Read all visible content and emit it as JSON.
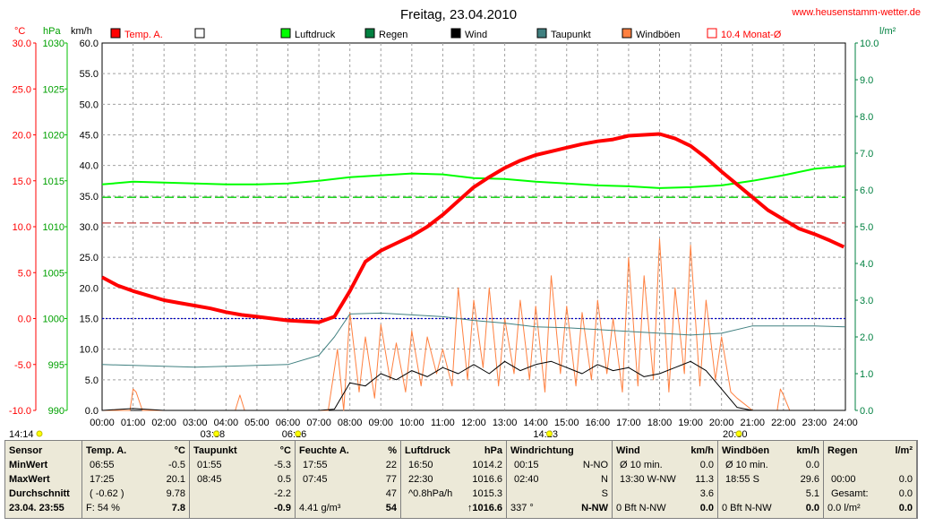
{
  "header": {
    "title": "Freitag, 23.04.2010",
    "website": "www.heusenstamm-wetter.de"
  },
  "axes": {
    "unit_temp": "°C",
    "unit_hpa": "hPa",
    "unit_kmh": "km/h",
    "unit_rain": "l/m²",
    "temp_labels": [
      "30.0",
      "25.0",
      "20.0",
      "15.0",
      "10.0",
      "5.0",
      "0.0",
      "-5.0",
      "-10.0"
    ],
    "hpa_labels": [
      "1030",
      "1025",
      "1020",
      "1015",
      "1010",
      "1005",
      "1000",
      "995",
      "990"
    ],
    "kmh_labels": [
      "60.0",
      "55.0",
      "50.0",
      "45.0",
      "40.0",
      "35.0",
      "30.0",
      "25.0",
      "20.0",
      "15.0",
      "10.0",
      "5.0",
      "0.0"
    ],
    "rain_labels": [
      "10.0",
      "9.0",
      "8.0",
      "7.0",
      "6.0",
      "5.0",
      "4.0",
      "3.0",
      "2.0",
      "1.0",
      "0.0"
    ],
    "time_labels": [
      "00:00",
      "01:00",
      "02:00",
      "03:00",
      "04:00",
      "05:00",
      "06:00",
      "07:00",
      "08:00",
      "09:00",
      "10:00",
      "11:00",
      "12:00",
      "13:00",
      "14:00",
      "15:00",
      "16:00",
      "17:00",
      "18:00",
      "19:00",
      "20:00",
      "21:00",
      "22:00",
      "23:00",
      "24:00"
    ],
    "sun_events": [
      {
        "label": "14:14",
        "hour": 0.0
      },
      {
        "label": "03:38",
        "hour": 3.633
      },
      {
        "label": "06:16",
        "hour": 6.267
      },
      {
        "label": "14:23",
        "hour": 14.383
      },
      {
        "label": "20:30",
        "hour": 20.5
      }
    ]
  },
  "legend": [
    {
      "label": "Temp. A.",
      "color": "#ff0000",
      "filled": true
    },
    {
      "label": "",
      "color": "#000000",
      "filled": false
    },
    {
      "label": "Luftdruck",
      "color": "#00ff00",
      "filled": true
    },
    {
      "label": "Regen",
      "color": "#008040",
      "filled": true
    },
    {
      "label": "Wind",
      "color": "#000000",
      "filled": true
    },
    {
      "label": "Taupunkt",
      "color": "#408080",
      "filled": true
    },
    {
      "label": "Windböen",
      "color": "#ff8040",
      "filled": true
    },
    {
      "label": "10.4 Monat-Ø",
      "color": "#ff0000",
      "filled": false
    }
  ],
  "chart_data": {
    "type": "line",
    "x_unit": "hour",
    "xlim": [
      0,
      24
    ],
    "ylim_temp": [
      -10,
      30
    ],
    "ylim_hpa": [
      990,
      1030
    ],
    "ylim_kmh": [
      0,
      60
    ],
    "ylim_rain": [
      0,
      10
    ],
    "grid": true,
    "reference_lines": [
      {
        "name": "10.4 Monat-Ø",
        "axis": "temp",
        "value": 10.4,
        "color": "#c04040"
      },
      {
        "name": "Luftdruck avg",
        "axis": "hpa",
        "value": 1013.2,
        "color": "#00d000"
      },
      {
        "name": "0 °C",
        "axis": "temp",
        "value": 0,
        "color": "#0000c0"
      }
    ],
    "series": [
      {
        "name": "Temp. A.",
        "axis": "temp",
        "color": "#ff0000",
        "x": [
          0,
          0.5,
          1,
          1.5,
          2,
          2.5,
          3,
          3.5,
          4,
          4.5,
          5,
          5.5,
          6,
          6.5,
          7,
          7.5,
          8,
          8.5,
          9,
          9.5,
          10,
          10.5,
          11,
          11.5,
          12,
          12.5,
          13,
          13.5,
          14,
          14.5,
          15,
          15.5,
          16,
          16.5,
          17,
          17.5,
          18,
          18.5,
          19,
          19.5,
          20,
          20.5,
          21,
          21.5,
          22,
          22.5,
          23,
          23.5,
          23.95
        ],
        "y": [
          4.5,
          3.6,
          3.0,
          2.5,
          2.0,
          1.7,
          1.4,
          1.1,
          0.7,
          0.4,
          0.2,
          0.0,
          -0.2,
          -0.3,
          -0.4,
          0.2,
          3.0,
          6.2,
          7.4,
          8.2,
          9.0,
          10.0,
          11.3,
          12.8,
          14.3,
          15.4,
          16.4,
          17.2,
          17.8,
          18.2,
          18.6,
          19.0,
          19.3,
          19.5,
          19.9,
          20.0,
          20.1,
          19.6,
          18.8,
          17.5,
          16.0,
          14.6,
          13.2,
          11.8,
          10.8,
          9.8,
          9.2,
          8.5,
          7.8
        ]
      },
      {
        "name": "Luftdruck",
        "axis": "hpa",
        "color": "#00ff00",
        "x": [
          0,
          1,
          2,
          3,
          4,
          5,
          6,
          7,
          8,
          9,
          10,
          11,
          12,
          13,
          14,
          15,
          16,
          17,
          18,
          19,
          20,
          21,
          22,
          23,
          24
        ],
        "y": [
          1014.6,
          1014.9,
          1014.8,
          1014.7,
          1014.6,
          1014.6,
          1014.7,
          1015.0,
          1015.4,
          1015.6,
          1015.8,
          1015.7,
          1015.3,
          1015.2,
          1014.9,
          1014.7,
          1014.5,
          1014.4,
          1014.2,
          1014.3,
          1014.5,
          1015.0,
          1015.6,
          1016.3,
          1016.6
        ]
      },
      {
        "name": "Taupunkt",
        "axis": "temp",
        "color": "#408080",
        "x": [
          0,
          1,
          2,
          3,
          4,
          5,
          6,
          7,
          7.5,
          8,
          9,
          10,
          11,
          12,
          13,
          14,
          15,
          16,
          17,
          18,
          19,
          20,
          21,
          22,
          23,
          24
        ],
        "y": [
          -5.0,
          -5.1,
          -5.2,
          -5.3,
          -5.2,
          -5.1,
          -5.0,
          -4.0,
          -2.0,
          0.5,
          0.6,
          0.4,
          0.2,
          -0.2,
          -0.5,
          -0.9,
          -1.0,
          -1.2,
          -1.4,
          -1.6,
          -1.8,
          -1.6,
          -0.8,
          -0.8,
          -0.8,
          -0.9
        ]
      },
      {
        "name": "Wind",
        "axis": "kmh",
        "color": "#000000",
        "x": [
          0,
          1,
          2,
          3,
          4,
          5,
          6,
          7,
          7.5,
          8,
          8.5,
          9,
          9.5,
          10,
          10.5,
          11,
          11.5,
          12,
          12.5,
          13,
          13.5,
          14,
          14.5,
          15,
          15.5,
          16,
          16.5,
          17,
          17.5,
          18,
          18.5,
          19,
          19.5,
          20,
          20.5,
          21,
          22,
          23,
          24
        ],
        "y": [
          0,
          0.3,
          0,
          0,
          0,
          0,
          0,
          0,
          0.2,
          4.5,
          4.0,
          6.0,
          5.0,
          6.5,
          5.5,
          7.0,
          6.0,
          7.5,
          6.0,
          8.0,
          6.5,
          7.5,
          8.0,
          7.0,
          6.0,
          7.5,
          6.5,
          7.0,
          5.5,
          6.0,
          7.0,
          8.0,
          6.5,
          3.5,
          0.5,
          0,
          0,
          0,
          0
        ]
      },
      {
        "name": "Windböen",
        "axis": "kmh",
        "color": "#ff8040",
        "x": [
          0,
          0.9,
          1.0,
          1.1,
          1.3,
          3,
          4.3,
          4.45,
          4.6,
          6,
          7.3,
          7.6,
          7.8,
          8.0,
          8.3,
          8.5,
          8.8,
          9.0,
          9.3,
          9.5,
          9.8,
          10.0,
          10.3,
          10.5,
          10.8,
          11.0,
          11.3,
          11.5,
          11.8,
          12.0,
          12.3,
          12.5,
          12.8,
          13.0,
          13.3,
          13.5,
          13.8,
          14.0,
          14.3,
          14.5,
          14.8,
          15.0,
          15.3,
          15.5,
          15.8,
          16.0,
          16.3,
          16.5,
          16.8,
          17.0,
          17.3,
          17.5,
          17.8,
          18.0,
          18.3,
          18.5,
          18.8,
          19.0,
          19.3,
          19.5,
          19.8,
          20.0,
          20.3,
          20.5,
          21.0,
          21.8,
          21.9,
          22.0,
          22.2,
          23.0,
          24.0
        ],
        "y": [
          0,
          0,
          3.5,
          3.0,
          0,
          0,
          0,
          2.5,
          0,
          0,
          0,
          10,
          0,
          16,
          3,
          12,
          2,
          14,
          5,
          11,
          3,
          13,
          4,
          12,
          6,
          10,
          4,
          20,
          5,
          18,
          7,
          20,
          4,
          15,
          6,
          18,
          5,
          17,
          3,
          22,
          6,
          17,
          4,
          16,
          5,
          18,
          6,
          15,
          3,
          25,
          4,
          22,
          5,
          28,
          3,
          20,
          6,
          27,
          4,
          18,
          5,
          12,
          3,
          2,
          0,
          0,
          3.5,
          2.5,
          0,
          0,
          0
        ]
      }
    ]
  },
  "stats": {
    "sensor": {
      "head": "Sensor",
      "rows": [
        "MinWert",
        "MaxWert",
        "Durchschnitt"
      ],
      "last": "23.04. 23:55"
    },
    "temp": {
      "head": "Temp. A.",
      "unit": "°C",
      "rows": [
        [
          "06:55",
          "-0.5"
        ],
        [
          "17:25",
          "20.1"
        ],
        [
          "( -0.62 )",
          "9.78"
        ]
      ],
      "last_left": "F: 54 %",
      "last_right": "7.8"
    },
    "taupunkt": {
      "head": "Taupunkt",
      "unit": "°C",
      "rows": [
        [
          "01:55",
          "-5.3"
        ],
        [
          "08:45",
          "0.5"
        ],
        [
          "",
          "-2.2"
        ]
      ],
      "last_left": "",
      "last_right": "-0.9"
    },
    "feuchte": {
      "head": "Feuchte A.",
      "unit": "%",
      "rows": [
        [
          "17:55",
          "22"
        ],
        [
          "07:45",
          "77"
        ],
        [
          "",
          "47"
        ]
      ],
      "last_left": "4.41 g/m³",
      "last_right": "54"
    },
    "luftdruck": {
      "head": "Luftdruck",
      "unit": "hPa",
      "rows": [
        [
          "16:50",
          "1014.2"
        ],
        [
          "22:30",
          "1016.6"
        ],
        [
          "^0.8hPa/h",
          "1015.3"
        ]
      ],
      "last_left": "",
      "last_right": "↑1016.6"
    },
    "windrichtung": {
      "head": "Windrichtung",
      "unit": "",
      "rows": [
        [
          "00:15",
          "N-NO"
        ],
        [
          "02:40",
          "N"
        ],
        [
          "",
          "S"
        ]
      ],
      "last_left": "337 °",
      "last_right": "N-NW"
    },
    "wind": {
      "head": "Wind",
      "unit": "km/h",
      "rows": [
        [
          "Ø 10 min.",
          "0.0"
        ],
        [
          "13:30   W-NW",
          "11.3"
        ],
        [
          "",
          "3.6"
        ]
      ],
      "last_left": "0 Bft N-NW",
      "last_right": "0.0"
    },
    "windboeen": {
      "head": "Windböen",
      "unit": "km/h",
      "rows": [
        [
          "Ø 10 min.",
          "0.0"
        ],
        [
          "18:55      S",
          "29.6"
        ],
        [
          "",
          "5.1"
        ]
      ],
      "last_left": "0 Bft N-NW",
      "last_right": "0.0"
    },
    "regen": {
      "head": "Regen",
      "unit": "l/m²",
      "rows": [
        [
          "",
          "",
          ""
        ],
        [
          "00:00",
          "0.0"
        ],
        [
          "Gesamt:",
          "0.0"
        ]
      ],
      "last_left": "0.0 l/m²",
      "last_right": "0.0"
    }
  }
}
